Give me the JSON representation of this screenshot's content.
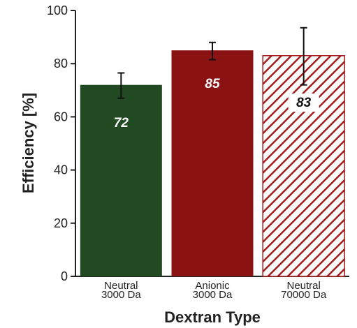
{
  "chart_data": {
    "type": "bar",
    "categories": [
      [
        "Neutral",
        "3000 Da"
      ],
      [
        "Anionic",
        "3000 Da"
      ],
      [
        "Neutral",
        "70000 Da"
      ]
    ],
    "values": [
      72,
      85,
      83
    ],
    "data_labels": [
      "72",
      "85",
      "83"
    ],
    "error_bars": [
      {
        "low": 67,
        "high": 76.5
      },
      {
        "low": 81.5,
        "high": 88
      },
      {
        "low": 72,
        "high": 93.5
      }
    ],
    "bar_styles": [
      {
        "fill": "#224a22",
        "pattern": "solid"
      },
      {
        "fill": "#8b1212",
        "pattern": "solid"
      },
      {
        "fill": "#a51c1c",
        "pattern": "hatched"
      }
    ],
    "xlabel": "Dextran Type",
    "ylabel": "Efficiency [%]",
    "ylim": [
      0,
      100
    ],
    "yticks": [
      0,
      20,
      40,
      60,
      80,
      100
    ],
    "grid": false
  }
}
